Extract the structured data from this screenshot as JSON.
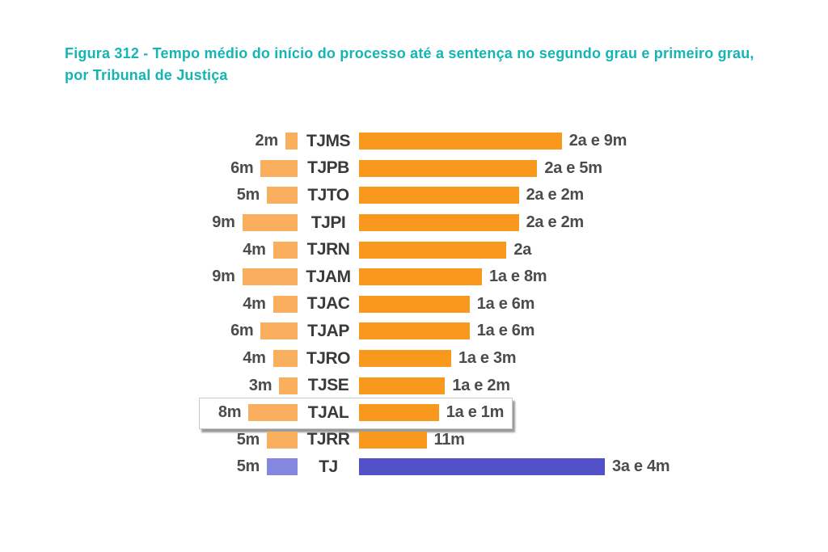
{
  "figure": {
    "title_line1": "Figura 312 - Tempo médio do início do processo até a sentença no segundo grau e primeiro grau,",
    "title_line2": "por Tribunal de Justiça",
    "title_color": "#14b5b4"
  },
  "chart_data": {
    "type": "bar",
    "orientation": "horizontal-diverging",
    "title": "Figura 312 - Tempo médio do início do processo até a sentença no segundo grau e primeiro grau, por Tribunal de Justiça",
    "categories": [
      "TJMS",
      "TJPB",
      "TJTO",
      "TJPI",
      "TJRN",
      "TJAM",
      "TJAC",
      "TJAP",
      "TJRO",
      "TJSE",
      "TJAL",
      "TJRR",
      "TJ"
    ],
    "series": [
      {
        "name": "left-duration",
        "labels": [
          "2m",
          "6m",
          "5m",
          "9m",
          "4m",
          "9m",
          "4m",
          "6m",
          "4m",
          "3m",
          "8m",
          "5m",
          "5m"
        ],
        "values_months": [
          2,
          6,
          5,
          9,
          4,
          9,
          4,
          6,
          4,
          3,
          8,
          5,
          5
        ]
      },
      {
        "name": "right-duration",
        "labels": [
          "2a e 9m",
          "2a e 5m",
          "2a e 2m",
          "2a e 2m",
          "2a",
          "1a e 8m",
          "1a e 6m",
          "1a e 6m",
          "1a e 3m",
          "1a e 2m",
          "1a e 1m",
          "11m",
          "3a e 4m"
        ],
        "values_months": [
          33,
          29,
          26,
          26,
          24,
          20,
          18,
          18,
          15,
          14,
          13,
          11,
          40
        ]
      }
    ],
    "highlighted_category": "TJAL",
    "legend_position": "none",
    "grid": false,
    "colors": {
      "left_bar": "#FAAF5F",
      "right_bar": "#F8991E",
      "tj_left_bar": "#8486DF",
      "tj_right_bar": "#5351C7",
      "duration_text": "#4c4c4c",
      "court_text": "#3a3a3a",
      "title_text": "#14b5b4"
    },
    "rows": [
      {
        "court": "TJMS",
        "left_label": "2m",
        "left_months": 2,
        "right_label": "2a e 9m",
        "right_months": 33,
        "color": "orange",
        "highlighted": false
      },
      {
        "court": "TJPB",
        "left_label": "6m",
        "left_months": 6,
        "right_label": "2a e 5m",
        "right_months": 29,
        "color": "orange",
        "highlighted": false
      },
      {
        "court": "TJTO",
        "left_label": "5m",
        "left_months": 5,
        "right_label": "2a e 2m",
        "right_months": 26,
        "color": "orange",
        "highlighted": false
      },
      {
        "court": "TJPI",
        "left_label": "9m",
        "left_months": 9,
        "right_label": "2a e 2m",
        "right_months": 26,
        "color": "orange",
        "highlighted": false
      },
      {
        "court": "TJRN",
        "left_label": "4m",
        "left_months": 4,
        "right_label": "2a",
        "right_months": 24,
        "color": "orange",
        "highlighted": false
      },
      {
        "court": "TJAM",
        "left_label": "9m",
        "left_months": 9,
        "right_label": "1a e 8m",
        "right_months": 20,
        "color": "orange",
        "highlighted": false
      },
      {
        "court": "TJAC",
        "left_label": "4m",
        "left_months": 4,
        "right_label": "1a e 6m",
        "right_months": 18,
        "color": "orange",
        "highlighted": false
      },
      {
        "court": "TJAP",
        "left_label": "6m",
        "left_months": 6,
        "right_label": "1a e 6m",
        "right_months": 18,
        "color": "orange",
        "highlighted": false
      },
      {
        "court": "TJRO",
        "left_label": "4m",
        "left_months": 4,
        "right_label": "1a e 3m",
        "right_months": 15,
        "color": "orange",
        "highlighted": false
      },
      {
        "court": "TJSE",
        "left_label": "3m",
        "left_months": 3,
        "right_label": "1a e 2m",
        "right_months": 14,
        "color": "orange",
        "highlighted": false
      },
      {
        "court": "TJAL",
        "left_label": "8m",
        "left_months": 8,
        "right_label": "1a e 1m",
        "right_months": 13,
        "color": "orange",
        "highlighted": true
      },
      {
        "court": "TJRR",
        "left_label": "5m",
        "left_months": 5,
        "right_label": "11m",
        "right_months": 11,
        "color": "orange",
        "highlighted": false
      },
      {
        "court": "TJ",
        "left_label": "5m",
        "left_months": 5,
        "right_label": "3a e 4m",
        "right_months": 40,
        "color": "blue",
        "highlighted": false
      }
    ]
  }
}
